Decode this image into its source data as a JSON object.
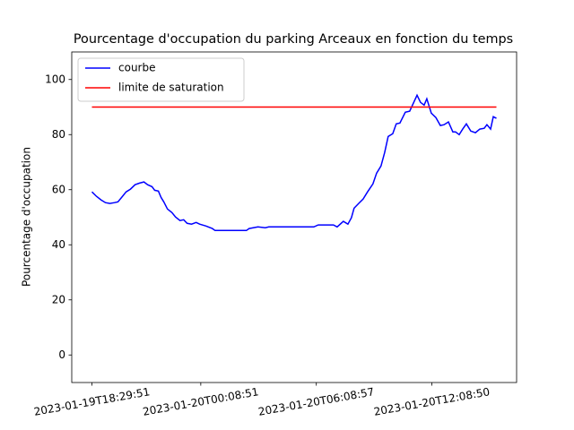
{
  "chart_data": {
    "type": "line",
    "title": "Pourcentage d'occupation du parking Arceaux en fonction du temps",
    "y_label": "Pourcentage d'occupation",
    "xlim": [
      -1.05,
      22.05
    ],
    "xticks": [
      {
        "value": 0,
        "label": "2023-01-19T18:29:51"
      },
      {
        "value": 5.65,
        "label": "2023-01-20T00:08:51"
      },
      {
        "value": 11.65,
        "label": "2023-01-20T06:08:57"
      },
      {
        "value": 17.65,
        "label": "2023-01-20T12:08:50"
      }
    ],
    "ylim": [
      -10,
      110
    ],
    "yticks": [
      0,
      20,
      40,
      60,
      80,
      100
    ],
    "grid": false,
    "legend": "upper left",
    "series": [
      {
        "name": "courbe",
        "color": "#0000ff",
        "x": [
          0,
          0.23,
          0.47,
          0.7,
          0.93,
          1.17,
          1.35,
          1.54,
          1.77,
          2.0,
          2.24,
          2.47,
          2.7,
          2.89,
          3.12,
          3.26,
          3.45,
          3.59,
          3.73,
          3.92,
          4.15,
          4.34,
          4.57,
          4.76,
          4.94,
          5.17,
          5.41,
          5.59,
          5.92,
          6.25,
          6.39,
          8.02,
          8.16,
          8.62,
          9.0,
          9.18,
          11.52,
          11.75,
          12.54,
          12.73,
          13.05,
          13.29,
          13.47,
          13.61,
          13.85,
          14.08,
          14.31,
          14.59,
          14.78,
          15.01,
          15.2,
          15.38,
          15.62,
          15.8,
          15.99,
          16.27,
          16.5,
          16.69,
          16.88,
          17.06,
          17.25,
          17.39,
          17.62,
          17.86,
          18.09,
          18.28,
          18.51,
          18.74,
          18.88,
          19.07,
          19.25,
          19.44,
          19.67,
          19.91,
          20.14,
          20.37,
          20.51,
          20.7,
          20.84,
          21
        ],
        "values": [
          59.2,
          57.6,
          56.3,
          55.3,
          55,
          55.3,
          55.6,
          57.2,
          59.2,
          60.2,
          61.8,
          62.4,
          62.8,
          61.8,
          61.1,
          59.8,
          59.5,
          57.2,
          55.6,
          53,
          51.7,
          50.1,
          48.8,
          49.1,
          47.8,
          47.5,
          48.1,
          47.5,
          46.8,
          45.9,
          45.2,
          45.2,
          45.9,
          46.5,
          46.2,
          46.5,
          46.5,
          47.2,
          47.2,
          46.5,
          48.5,
          47.5,
          49.8,
          53.3,
          55,
          56.6,
          59.2,
          62.1,
          66,
          68.6,
          73.5,
          79.3,
          80.3,
          83.9,
          84.2,
          88.1,
          88.5,
          91.4,
          94.3,
          91.7,
          90.7,
          93,
          87.8,
          86.2,
          83.3,
          83.6,
          84.6,
          81,
          81,
          80,
          82,
          83.9,
          81.3,
          80.7,
          82,
          82.3,
          83.6,
          82,
          86.5,
          85.9
        ]
      },
      {
        "name": "limite de saturation",
        "color": "#ff0000",
        "x": [
          0,
          21
        ],
        "values": [
          90,
          90
        ]
      }
    ]
  }
}
